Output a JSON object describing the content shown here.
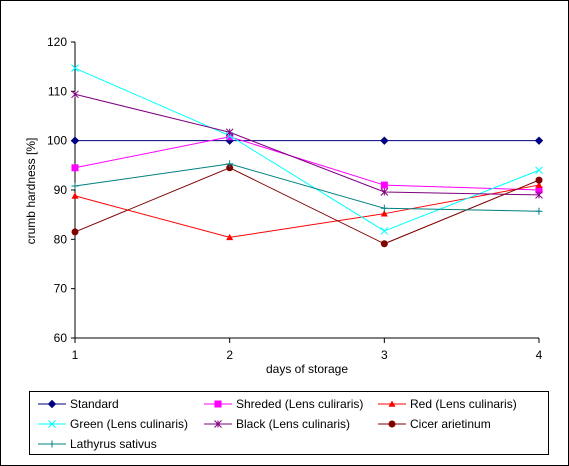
{
  "chart_data": {
    "type": "line",
    "x": [
      1,
      2,
      3,
      4
    ],
    "categories": [
      "1",
      "2",
      "3",
      "4"
    ],
    "xlabel": "days of storage",
    "ylabel": "crumb hardness [%]",
    "ylim": [
      60,
      120
    ],
    "yticks": [
      60,
      70,
      80,
      90,
      100,
      110,
      120
    ],
    "grid": false,
    "legend_position": "bottom",
    "series": [
      {
        "name": "Standard",
        "values": [
          100,
          100,
          100,
          100
        ],
        "color": "#000080",
        "marker": "diamond"
      },
      {
        "name": "Shreded (Lens culiraris)",
        "values": [
          94.5,
          100.8,
          91.0,
          90.0
        ],
        "color": "#ff00ff",
        "marker": "square"
      },
      {
        "name": "Red (Lens culinaris)",
        "values": [
          88.8,
          80.4,
          85.2,
          91.0
        ],
        "color": "#ff0000",
        "marker": "triangle"
      },
      {
        "name": "Green (Lens culinaris)",
        "values": [
          114.7,
          101.0,
          81.7,
          94.0
        ],
        "color": "#00ffff",
        "marker": "x"
      },
      {
        "name": "Black (Lens culinaris)",
        "values": [
          109.4,
          101.7,
          89.6,
          89.0
        ],
        "color": "#800080",
        "marker": "star"
      },
      {
        "name": "Cicer arietinum",
        "values": [
          81.5,
          94.5,
          79.1,
          92.0
        ],
        "color": "#800000",
        "marker": "circle"
      },
      {
        "name": "Lathyrus sativus",
        "values": [
          90.8,
          95.3,
          86.3,
          85.7
        ],
        "color": "#008080",
        "marker": "plus"
      }
    ]
  }
}
